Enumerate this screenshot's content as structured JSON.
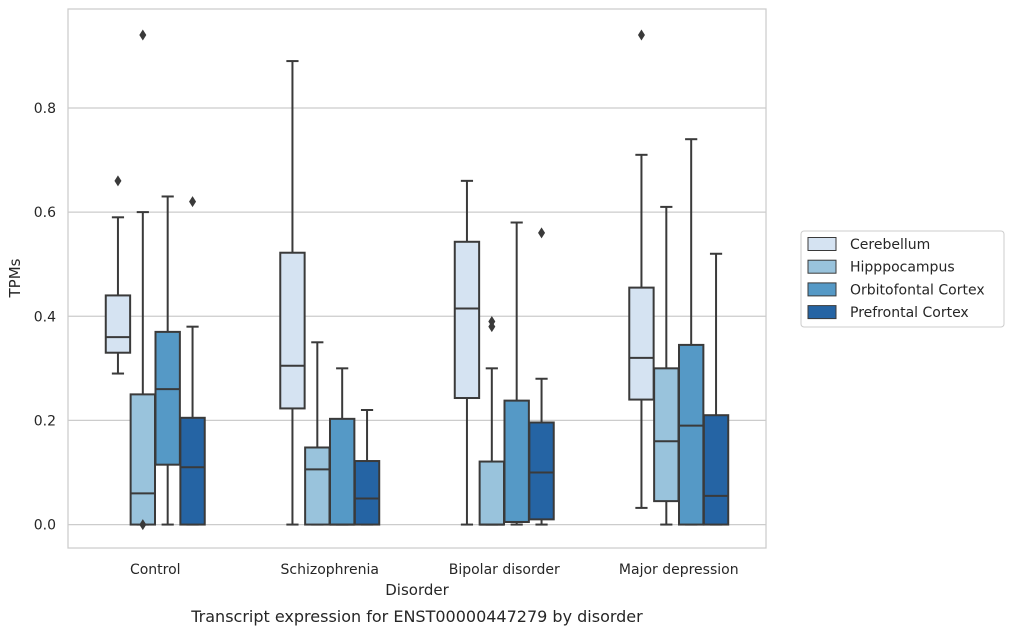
{
  "caption": "Transcript expression for ENST00000447279 by disorder",
  "chart_data": {
    "type": "box",
    "xlabel": "Disorder",
    "ylabel": "TPMs",
    "ylim": [
      -0.045,
      0.99
    ],
    "yticks": [
      0.0,
      0.2,
      0.4,
      0.6,
      0.8
    ],
    "ytick_labels": [
      "0.0",
      "0.2",
      "0.4",
      "0.6",
      "0.8"
    ],
    "grid": "horizontal",
    "legend_position": "right",
    "categories": [
      "Control",
      "Schizophrenia",
      "Bipolar disorder",
      "Major depression"
    ],
    "series": [
      {
        "name": "Cerebellum",
        "color": "#d5e3f2",
        "boxes": [
          {
            "whislo": 0.29,
            "q1": 0.33,
            "med": 0.36,
            "q3": 0.44,
            "whishi": 0.59,
            "fliers": [
              0.66
            ]
          },
          {
            "whislo": 0.0,
            "q1": 0.223,
            "med": 0.305,
            "q3": 0.522,
            "whishi": 0.89,
            "fliers": []
          },
          {
            "whislo": 0.0,
            "q1": 0.243,
            "med": 0.415,
            "q3": 0.543,
            "whishi": 0.66,
            "fliers": []
          },
          {
            "whislo": 0.032,
            "q1": 0.24,
            "med": 0.32,
            "q3": 0.455,
            "whishi": 0.71,
            "fliers": [
              0.94
            ]
          }
        ]
      },
      {
        "name": "Hipppocampus",
        "color": "#99c3dc",
        "boxes": [
          {
            "whislo": 0.0,
            "q1": 0.0,
            "med": 0.06,
            "q3": 0.25,
            "whishi": 0.6,
            "fliers": [
              0.0,
              0.94
            ]
          },
          {
            "whislo": 0.0,
            "q1": 0.0,
            "med": 0.106,
            "q3": 0.148,
            "whishi": 0.35,
            "fliers": []
          },
          {
            "whislo": 0.0,
            "q1": 0.0,
            "med": 0.0,
            "q3": 0.121,
            "whishi": 0.3,
            "fliers": [
              0.38,
              0.39
            ]
          },
          {
            "whislo": 0.0,
            "q1": 0.045,
            "med": 0.16,
            "q3": 0.3,
            "whishi": 0.61,
            "fliers": []
          }
        ]
      },
      {
        "name": "Orbitofontal Cortex",
        "color": "#5599c6",
        "boxes": [
          {
            "whislo": 0.0,
            "q1": 0.115,
            "med": 0.26,
            "q3": 0.37,
            "whishi": 0.63,
            "fliers": []
          },
          {
            "whislo": 0.0,
            "q1": 0.0,
            "med": 0.0,
            "q3": 0.203,
            "whishi": 0.3,
            "fliers": []
          },
          {
            "whislo": 0.0,
            "q1": 0.005,
            "med": 0.005,
            "q3": 0.238,
            "whishi": 0.58,
            "fliers": []
          },
          {
            "whislo": 0.0,
            "q1": 0.0,
            "med": 0.19,
            "q3": 0.345,
            "whishi": 0.74,
            "fliers": []
          }
        ]
      },
      {
        "name": "Prefrontal Cortex",
        "color": "#2564a4",
        "boxes": [
          {
            "whislo": 0.0,
            "q1": 0.0,
            "med": 0.11,
            "q3": 0.205,
            "whishi": 0.38,
            "fliers": [
              0.62
            ]
          },
          {
            "whislo": 0.0,
            "q1": 0.0,
            "med": 0.05,
            "q3": 0.122,
            "whishi": 0.22,
            "fliers": []
          },
          {
            "whislo": 0.0,
            "q1": 0.01,
            "med": 0.1,
            "q3": 0.196,
            "whishi": 0.28,
            "fliers": [
              0.56
            ]
          },
          {
            "whislo": 0.0,
            "q1": 0.0,
            "med": 0.055,
            "q3": 0.21,
            "whishi": 0.52,
            "fliers": []
          }
        ]
      }
    ]
  }
}
